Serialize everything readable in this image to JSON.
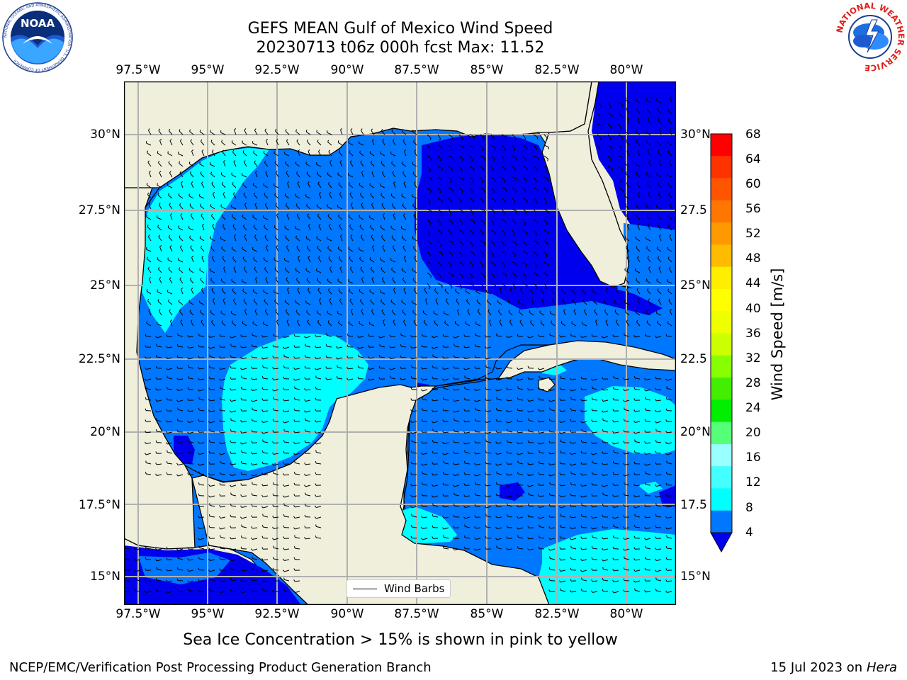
{
  "header": {
    "title_line1": "GEFS MEAN Gulf of Mexico Wind Speed",
    "title_line2": "20230713 t06z 000h fcst   Max: 11.52"
  },
  "logos": {
    "left": "NOAA",
    "left_ring": "NATIONAL OCEANIC AND ATMOSPHERIC ADMINISTRATION · U.S. DEPARTMENT OF COMMERCE",
    "right_ring": "NATIONAL WEATHER SERVICE"
  },
  "map": {
    "lon_labels": [
      "97.5°W",
      "95°W",
      "92.5°W",
      "90°W",
      "87.5°W",
      "85°W",
      "82.5°W",
      "80°W"
    ],
    "lat_labels_left": [
      "30°N",
      "27.5°N",
      "25°N",
      "22.5°N",
      "20°N",
      "17.5°N",
      "15°N"
    ],
    "lat_labels_right": [
      "30°N",
      "27.5",
      "25°N",
      "22.5",
      "20°N",
      "17.5",
      "15°N"
    ],
    "legend_label": "Wind Barbs",
    "colors": {
      "land": "#efefdc",
      "ws_4_8": "#0077ff",
      "ws_lt_4": "#0000ee",
      "ws_8_12": "#00ffff",
      "grid": "#b0b0b0"
    }
  },
  "colorbar": {
    "label": "Wind Speed [m/s]",
    "ticks": [
      "68",
      "64",
      "60",
      "56",
      "52",
      "48",
      "44",
      "40",
      "36",
      "32",
      "28",
      "24",
      "20",
      "16",
      "12",
      "8",
      "4"
    ],
    "colors_top_to_bottom": [
      "#ff0000",
      "#ff3300",
      "#ff5500",
      "#ff7700",
      "#ff9900",
      "#ffbb00",
      "#ffee00",
      "#ffff00",
      "#eeff00",
      "#ccff00",
      "#88ff00",
      "#44ee00",
      "#00ee00",
      "#55ff77",
      "#99ffff",
      "#44ffff",
      "#00ffff",
      "#0077ff"
    ],
    "under_color": "#0000ee"
  },
  "footer": {
    "sea_ice_note": "Sea Ice Concentration > 15% is shown in pink to yellow",
    "branch": "NCEP/EMC/Verification Post Processing Product Generation Branch",
    "date_prefix": "15 Jul 2023 on ",
    "machine": "Hera"
  }
}
